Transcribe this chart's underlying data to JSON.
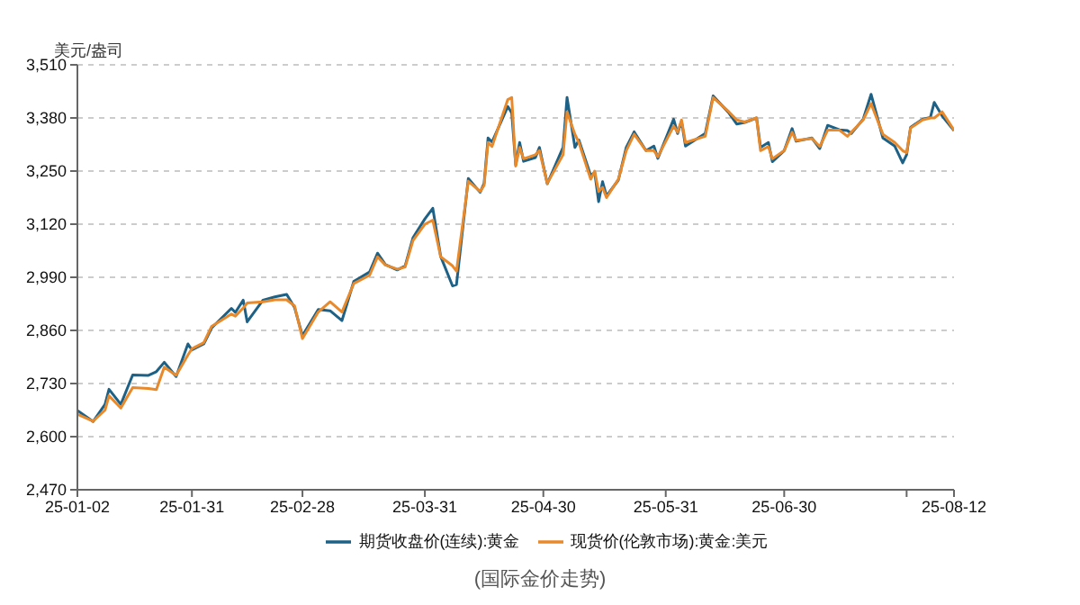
{
  "chart_data": {
    "type": "line",
    "ylabel": "美元/盎司",
    "annotations": [
      "(国际金价走势)"
    ],
    "x": [
      "--01-02",
      "--01-06",
      "--01-09",
      "--01-10",
      "--01-13",
      "--01-16",
      "--01-20",
      "--01-22",
      "--01-24",
      "--01-27",
      "--01-30",
      "--01-31",
      "--02-03",
      "--02-05",
      "--02-10",
      "--02-11",
      "--02-13",
      "--02-14",
      "--02-18",
      "--02-21",
      "--02-24",
      "--02-26",
      "--02-28",
      "--03-04",
      "--03-07",
      "--03-10",
      "--03-13",
      "--03-17",
      "--03-19",
      "--03-21",
      "--03-24",
      "--03-26",
      "--03-28",
      "--03-31",
      "--04-02",
      "--04-04",
      "--04-07",
      "--04-08",
      "--04-11",
      "--04-14",
      "--04-15",
      "--04-16",
      "--04-17",
      "--04-21",
      "--04-22",
      "--04-23",
      "--04-24",
      "--04-25",
      "--04-28",
      "--04-29",
      "--05-01",
      "--05-05",
      "--05-06",
      "--05-08",
      "--05-09",
      "--05-12",
      "--05-13",
      "--05-14",
      "--05-15",
      "--05-16",
      "--05-19",
      "--05-21",
      "--05-23",
      "--05-26",
      "--05-28",
      "--05-29",
      "--06-02",
      "--06-03",
      "--06-04",
      "--06-05",
      "--06-10",
      "--06-12",
      "--06-16",
      "--06-18",
      "--06-20",
      "--06-23",
      "--06-24",
      "--06-26",
      "--06-27",
      "--06-30",
      "--07-02",
      "--07-03",
      "--07-07",
      "--07-09",
      "--07-11",
      "--07-14",
      "--07-16",
      "--07-17",
      "--07-20",
      "--07-22",
      "--07-25",
      "--07-28",
      "--07-30",
      "--07-31",
      "--08-01",
      "--08-04",
      "--08-06",
      "--08-07",
      "--08-09",
      "--08-12"
    ],
    "series": [
      {
        "name": "期货收盘价(连续):黄金",
        "color": "#1d6186",
        "values": [
          2664,
          2637,
          2679,
          2716,
          2679,
          2751,
          2750,
          2759,
          2782,
          2747,
          2827,
          2812,
          2827,
          2866,
          2914,
          2904,
          2934,
          2881,
          2934,
          2942,
          2948,
          2916,
          2847,
          2911,
          2908,
          2884,
          2980,
          3003,
          3049,
          3021,
          3008,
          3018,
          3087,
          3133,
          3159,
          3041,
          2969,
          2972,
          3232,
          3198,
          3220,
          3331,
          3321,
          3408,
          3392,
          3265,
          3320,
          3274,
          3283,
          3308,
          3219,
          3308,
          3430,
          3308,
          3326,
          3239,
          3247,
          3175,
          3224,
          3189,
          3228,
          3308,
          3346,
          3300,
          3311,
          3281,
          3377,
          3342,
          3372,
          3311,
          3342,
          3434,
          3392,
          3365,
          3369,
          3380,
          3308,
          3320,
          3273,
          3300,
          3354,
          3323,
          3331,
          3305,
          3362,
          3351,
          3349,
          3342,
          3377,
          3438,
          3331,
          3311,
          3270,
          3290,
          3357,
          3377,
          3381,
          3418,
          3385,
          3349
        ]
      },
      {
        "name": "现货价(伦敦市场):黄金:美元",
        "color": "#e8892b",
        "values": [
          2655,
          2638,
          2665,
          2700,
          2670,
          2720,
          2718,
          2715,
          2770,
          2750,
          2800,
          2815,
          2830,
          2870,
          2900,
          2895,
          2915,
          2927,
          2930,
          2935,
          2935,
          2920,
          2840,
          2905,
          2930,
          2905,
          2975,
          2995,
          3040,
          3020,
          3010,
          3015,
          3080,
          3120,
          3130,
          3040,
          3018,
          3005,
          3225,
          3200,
          3215,
          3320,
          3310,
          3425,
          3430,
          3262,
          3308,
          3280,
          3290,
          3300,
          3220,
          3290,
          3395,
          3340,
          3320,
          3230,
          3250,
          3200,
          3210,
          3185,
          3230,
          3300,
          3340,
          3300,
          3300,
          3285,
          3360,
          3345,
          3375,
          3320,
          3335,
          3430,
          3395,
          3375,
          3370,
          3380,
          3300,
          3310,
          3280,
          3300,
          3345,
          3325,
          3330,
          3310,
          3350,
          3350,
          3335,
          3345,
          3375,
          3415,
          3340,
          3320,
          3300,
          3295,
          3355,
          3375,
          3380,
          3380,
          3395,
          3350
        ]
      }
    ],
    "xlim": [
      "--01-02",
      "--08-12"
    ],
    "xticks": [
      {
        "value": "--01-02",
        "label": "25-01-02"
      },
      {
        "value": "--01-31",
        "label": "25-01-31"
      },
      {
        "value": "--02-28",
        "label": "25-02-28"
      },
      {
        "value": "--03-31",
        "label": "25-03-31"
      },
      {
        "value": "--04-30",
        "label": "25-04-30"
      },
      {
        "value": "--05-31",
        "label": "25-05-31"
      },
      {
        "value": "--06-30",
        "label": "25-06-30"
      },
      {
        "value": "--07-31",
        "label": null
      },
      {
        "value": "--08-12",
        "label": "25-08-12"
      }
    ],
    "ylim": [
      2470,
      3510
    ],
    "yticks": [
      {
        "value": 2470,
        "label": "2,470"
      },
      {
        "value": 2600,
        "label": "2,600"
      },
      {
        "value": 2730,
        "label": "2,730"
      },
      {
        "value": 2860,
        "label": "2,860"
      },
      {
        "value": 2990,
        "label": "2,990"
      },
      {
        "value": 3120,
        "label": "3,120"
      },
      {
        "value": 3250,
        "label": "3,250"
      },
      {
        "value": 3380,
        "label": "3,380"
      },
      {
        "value": 3510,
        "label": "3,510"
      }
    ],
    "grid": "y",
    "legend": "bottom",
    "marker": "none",
    "line_style": "solid"
  }
}
